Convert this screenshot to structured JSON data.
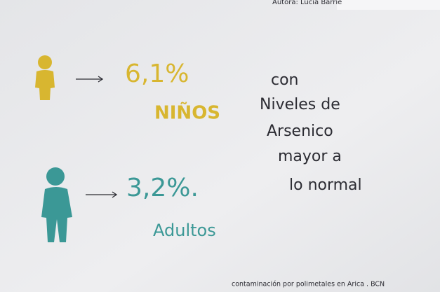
{
  "author": "Autora: Lucia Barrie",
  "groups": [
    {
      "percentage": "6,1%",
      "label": "NIÑOS"
    },
    {
      "percentage": "3,2%.",
      "label": "Adultos"
    }
  ],
  "description": [
    "con",
    "Niveles de",
    "Arsenico",
    "mayor a",
    "lo normal"
  ],
  "footer": "contaminación por polimetales en Arica . BCN"
}
